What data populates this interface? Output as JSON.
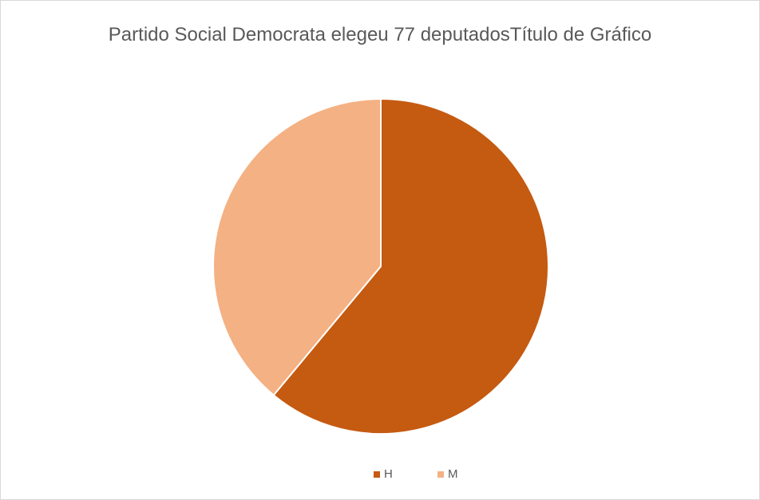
{
  "chart_data": {
    "type": "pie",
    "title": "Partido Social Democrata elegeu 77 deputadosTítulo de Gráfico",
    "categories": [
      "H",
      "M"
    ],
    "values": [
      47,
      30
    ],
    "colors": [
      "#c55a11",
      "#f4b183"
    ],
    "legend": "bottom"
  }
}
